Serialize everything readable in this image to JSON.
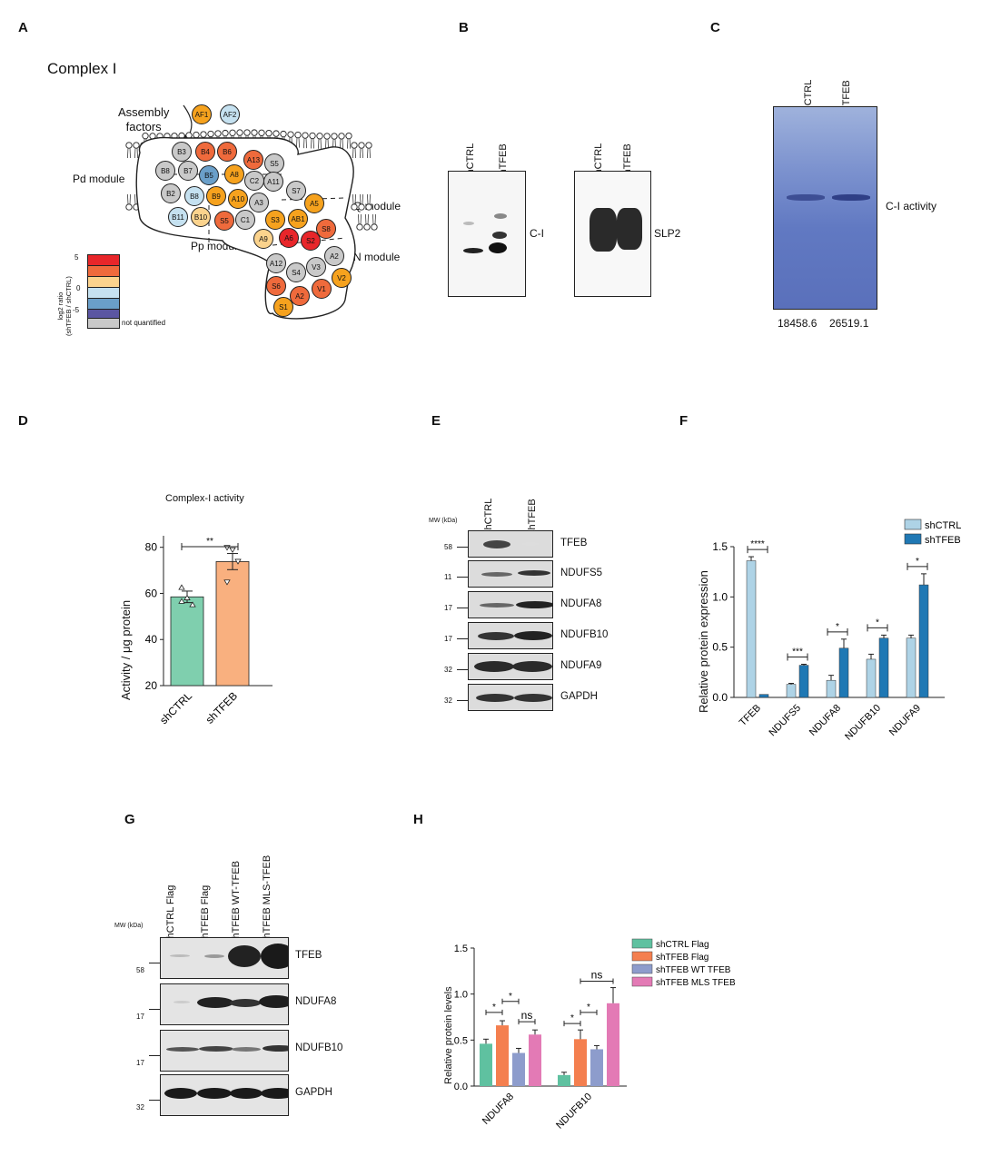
{
  "panels": {
    "a": "A",
    "b": "B",
    "c": "C",
    "d": "D",
    "e": "E",
    "f": "F",
    "g": "G",
    "h": "H"
  },
  "panelA": {
    "title": "Complex I",
    "assembly_line1": "Assembly",
    "assembly_line2": "factors",
    "pd_module": "Pd module",
    "pp_module": "Pp module",
    "q_module": "Q module",
    "n_module": "N module",
    "legend_axis_line1": "log2 ratio",
    "legend_axis_line2": "(shTFEB / shCTRL)",
    "legend_ticks": [
      "5",
      "0",
      "-5"
    ],
    "legend_not_quantified": "not quantified",
    "colors": {
      "red": "#e8262a",
      "orange_red": "#ef6a3c",
      "orange": "#f6a21e",
      "pale_orange": "#fbd38d",
      "light_blue": "#c5e1f0",
      "mid_blue": "#6a9fc9",
      "purple": "#5b56a2",
      "grey": "#c9c9c9"
    },
    "subunits": [
      {
        "name": "AF1",
        "color": "orange"
      },
      {
        "name": "AF2",
        "color": "light_blue"
      },
      {
        "name": "B3",
        "color": "grey"
      },
      {
        "name": "B4",
        "color": "orange_red"
      },
      {
        "name": "B6",
        "color": "orange_red"
      },
      {
        "name": "A13",
        "color": "orange_red"
      },
      {
        "name": "S5",
        "color": "grey"
      },
      {
        "name": "B8",
        "color": "grey"
      },
      {
        "name": "B7",
        "color": "grey"
      },
      {
        "name": "B5",
        "color": "mid_blue"
      },
      {
        "name": "A8",
        "color": "orange"
      },
      {
        "name": "C2",
        "color": "grey"
      },
      {
        "name": "A11",
        "color": "grey"
      },
      {
        "name": "S7",
        "color": "grey"
      },
      {
        "name": "B2",
        "color": "grey"
      },
      {
        "name": "B8",
        "color": "light_blue"
      },
      {
        "name": "B9",
        "color": "orange"
      },
      {
        "name": "A10",
        "color": "orange"
      },
      {
        "name": "A3",
        "color": "grey"
      },
      {
        "name": "A5",
        "color": "orange"
      },
      {
        "name": "B11",
        "color": "light_blue"
      },
      {
        "name": "B10",
        "color": "pale_orange"
      },
      {
        "name": "S5",
        "color": "orange_red"
      },
      {
        "name": "C1",
        "color": "grey"
      },
      {
        "name": "S3",
        "color": "orange"
      },
      {
        "name": "AB1",
        "color": "orange"
      },
      {
        "name": "S8",
        "color": "orange_red"
      },
      {
        "name": "A9",
        "color": "pale_orange"
      },
      {
        "name": "A6",
        "color": "red"
      },
      {
        "name": "S2",
        "color": "red"
      },
      {
        "name": "A2",
        "color": "grey"
      },
      {
        "name": "A12",
        "color": "grey"
      },
      {
        "name": "S4",
        "color": "grey"
      },
      {
        "name": "V3",
        "color": "grey"
      },
      {
        "name": "V2",
        "color": "orange"
      },
      {
        "name": "S6",
        "color": "orange_red"
      },
      {
        "name": "A2",
        "color": "orange_red"
      },
      {
        "name": "V1",
        "color": "orange_red"
      },
      {
        "name": "S1",
        "color": "orange"
      }
    ]
  },
  "panelB": {
    "blot1_lanes": [
      "shCTRL",
      "shTFEB"
    ],
    "blot1_label": "C-I",
    "blot2_lanes": [
      "shCTRL",
      "shTFEB"
    ],
    "blot2_label": "SLP2"
  },
  "panelC": {
    "lanes": [
      "shCTRL",
      "shTFEB"
    ],
    "label": "C-I activity",
    "values": [
      "18458.6",
      "26519.1"
    ]
  },
  "panelD": {
    "chart_data": {
      "type": "bar",
      "title": "Complex-I activity",
      "ylabel": "Activity / μg protein",
      "categories": [
        "shCTRL",
        "shTFEB"
      ],
      "values": [
        58.5,
        73.8
      ],
      "errors": [
        2.5,
        3.5
      ],
      "ylim": [
        20,
        85
      ],
      "yticks": [
        20,
        40,
        60,
        80
      ],
      "points": [
        [
          62.5,
          58,
          55,
          56.5
        ],
        [
          80,
          79,
          74,
          65
        ]
      ],
      "significance": "**",
      "colors": [
        "#7fcfae",
        "#f9b07f"
      ]
    }
  },
  "panelE": {
    "mw_title": "MW (kDa)",
    "lanes": [
      "shCTRL",
      "shTFEB"
    ],
    "rows": [
      {
        "label": "TFEB",
        "mw": "58"
      },
      {
        "label": "NDUFS5",
        "mw": "11"
      },
      {
        "label": "NDUFA8",
        "mw": "17"
      },
      {
        "label": "NDUFB10",
        "mw": "17"
      },
      {
        "label": "NDUFA9",
        "mw": "32"
      },
      {
        "label": "GAPDH",
        "mw": "32"
      }
    ]
  },
  "panelF": {
    "chart_data": {
      "type": "bar",
      "ylabel": "Relative protein expression",
      "categories": [
        "TFEB",
        "NDUFS5",
        "NDUFA8",
        "NDUFB10",
        "NDUFA9"
      ],
      "series": [
        {
          "name": "shCTRL",
          "color": "#aed3e6",
          "values": [
            1.36,
            0.13,
            0.17,
            0.38,
            0.59
          ],
          "errors": [
            0.04,
            0.01,
            0.05,
            0.05,
            0.03
          ]
        },
        {
          "name": "shTFEB",
          "color": "#1f78b4",
          "values": [
            0.03,
            0.32,
            0.49,
            0.59,
            1.12
          ],
          "errors": [
            0.0,
            0.01,
            0.09,
            0.03,
            0.11
          ]
        }
      ],
      "ylim": [
        0,
        1.5
      ],
      "yticks": [
        "0.0",
        "0.5",
        "1.0",
        "1.5"
      ],
      "significance": [
        "****",
        "***",
        "*",
        "*",
        "*"
      ]
    }
  },
  "panelG": {
    "mw_title": "MW (kDa)",
    "lanes": [
      "shCTRL Flag",
      "shTFEB Flag",
      "shTFEB WT-TFEB",
      "shTFEB MLS-TFEB"
    ],
    "rows": [
      {
        "label": "TFEB",
        "mw": "58"
      },
      {
        "label": "NDUFA8",
        "mw": "17"
      },
      {
        "label": "NDUFB10",
        "mw": "17"
      },
      {
        "label": "GAPDH",
        "mw": "32"
      }
    ]
  },
  "panelH": {
    "chart_data": {
      "type": "bar",
      "ylabel": "Relative protein levels",
      "categories": [
        "NDUFA8",
        "NDUFB10"
      ],
      "series": [
        {
          "name": "shCTRL Flag",
          "color": "#5fc1a0",
          "values": [
            0.46,
            0.12
          ],
          "errors": [
            0.05,
            0.03
          ]
        },
        {
          "name": "shTFEB Flag",
          "color": "#f47f4f",
          "values": [
            0.66,
            0.51
          ],
          "errors": [
            0.05,
            0.1
          ]
        },
        {
          "name": "shTFEB WT TFEB",
          "color": "#8d9ccc",
          "values": [
            0.36,
            0.4
          ],
          "errors": [
            0.05,
            0.04
          ]
        },
        {
          "name": "shTFEB MLS TFEB",
          "color": "#e37ab5",
          "values": [
            0.56,
            0.9
          ],
          "errors": [
            0.05,
            0.17
          ]
        }
      ],
      "ylim": [
        0,
        1.5
      ],
      "yticks": [
        "0.0",
        "0.5",
        "1.0",
        "1.5"
      ],
      "significance": {
        "NDUFA8": [
          "*",
          "*",
          "ns"
        ],
        "NDUFB10": [
          "*",
          "*",
          "ns"
        ]
      }
    }
  }
}
